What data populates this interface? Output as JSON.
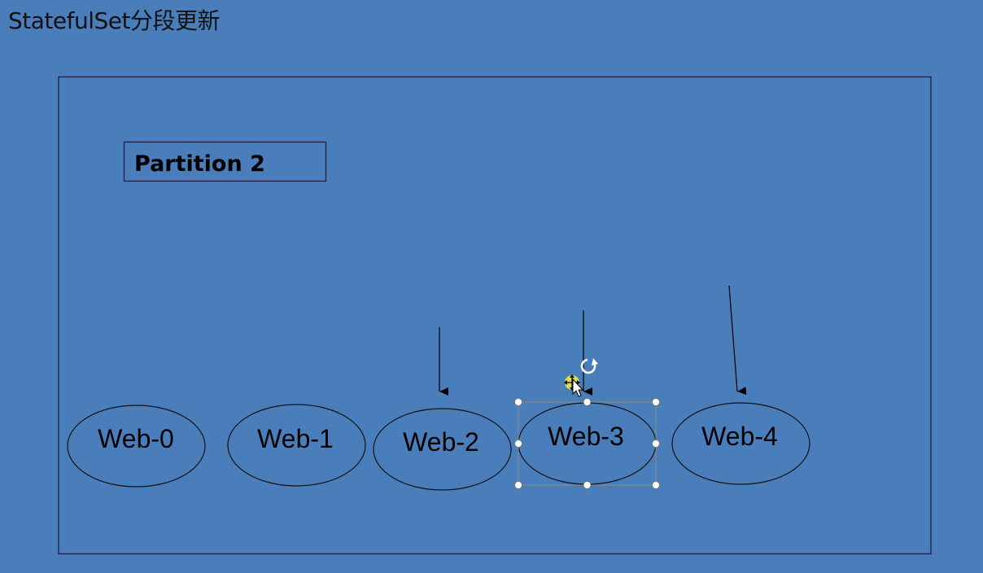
{
  "slide": {
    "title": "StatefulSet分段更新",
    "background_color": "#4a7ebb"
  },
  "partition_box": {
    "label": "Partition 2"
  },
  "pods": [
    {
      "label": "Web-0",
      "arrow": false,
      "selected": false
    },
    {
      "label": "Web-1",
      "arrow": false,
      "selected": false
    },
    {
      "label": "Web-2",
      "arrow": true,
      "selected": false
    },
    {
      "label": "Web-3",
      "arrow": true,
      "selected": true
    },
    {
      "label": "Web-4",
      "arrow": true,
      "selected": false
    }
  ],
  "icons": {
    "rotate_handle": "rotate-icon",
    "cursor": "move-cursor-icon"
  }
}
